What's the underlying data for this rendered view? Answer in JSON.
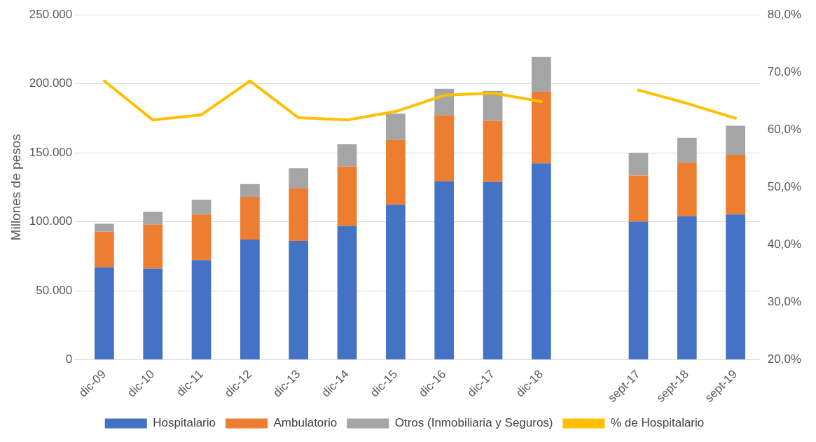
{
  "chart_data": {
    "type": "bar",
    "stacked": true,
    "ylabel": "Millones de pesos",
    "categories": [
      "dic-09",
      "dic-10",
      "dic-11",
      "dic-12",
      "dic-13",
      "dic-14",
      "dic-15",
      "dic-16",
      "dic-17",
      "dic-18",
      null,
      "sept-17",
      "sept-18",
      "sept-19"
    ],
    "series": [
      {
        "name": "Hospitalario",
        "color": "#4472c4",
        "values": [
          67000,
          66000,
          72200,
          87100,
          86100,
          96900,
          112400,
          129400,
          128900,
          142300,
          null,
          100000,
          104100,
          105200
        ]
      },
      {
        "name": "Ambulatorio",
        "color": "#ed7d31",
        "values": [
          25800,
          31900,
          33000,
          30900,
          38100,
          43300,
          46900,
          47900,
          44300,
          52000,
          null,
          33500,
          38700,
          43300
        ]
      },
      {
        "name": "Otros (Inmobiliaria y Seguros)",
        "color": "#a5a5a5",
        "values": [
          5700,
          9300,
          10800,
          9300,
          14500,
          16000,
          19100,
          19100,
          21700,
          25300,
          null,
          16500,
          18000,
          21100
        ]
      },
      {
        "name": "% de Hospitalario",
        "type": "line",
        "axis": "y2",
        "color": "#ffc000",
        "values": [
          68.5,
          61.7,
          62.6,
          68.5,
          62.1,
          61.7,
          63.2,
          66.0,
          66.4,
          64.9,
          null,
          66.9,
          64.6,
          62.0
        ]
      }
    ],
    "ylim": [
      0,
      250000
    ],
    "yticks": [
      {
        "value": 0,
        "label": "0"
      },
      {
        "value": 50000,
        "label": "50.000"
      },
      {
        "value": 100000,
        "label": "100.000"
      },
      {
        "value": 150000,
        "label": "150.000"
      },
      {
        "value": 200000,
        "label": "200.000"
      },
      {
        "value": 250000,
        "label": "250.000"
      }
    ],
    "y2lim": [
      20,
      80
    ],
    "y2ticks": [
      {
        "value": 20,
        "label": "20,0%"
      },
      {
        "value": 30,
        "label": "30,0%"
      },
      {
        "value": 40,
        "label": "40,0%"
      },
      {
        "value": 50,
        "label": "50,0%"
      },
      {
        "value": 60,
        "label": "60,0%"
      },
      {
        "value": 70,
        "label": "70,0%"
      },
      {
        "value": 80,
        "label": "80,0%"
      }
    ],
    "grid": "y",
    "legend": "bottom",
    "marker": "none"
  }
}
